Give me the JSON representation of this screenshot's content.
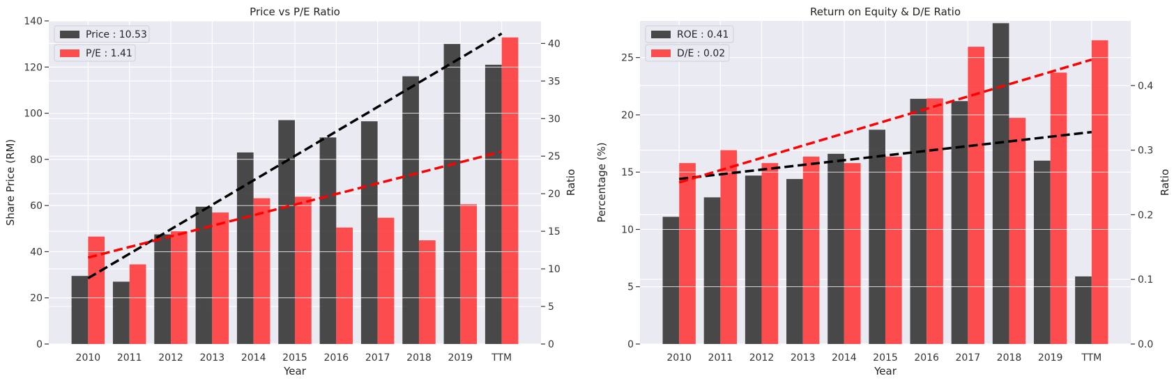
{
  "chart_data": [
    {
      "type": "bar",
      "title": "Price vs P/E Ratio",
      "xlabel": "Year",
      "ylabel": "Share Price (RM)",
      "ylabel_right": "Ratio",
      "categories": [
        "2010",
        "2011",
        "2012",
        "2013",
        "2014",
        "2015",
        "2016",
        "2017",
        "2018",
        "2019",
        "TTM"
      ],
      "ylim": [
        0,
        140
      ],
      "yticks": [
        0,
        20,
        40,
        60,
        80,
        100,
        120,
        140
      ],
      "ylim_right": [
        0,
        43
      ],
      "yticks_right": [
        0,
        5,
        10,
        15,
        20,
        25,
        30,
        35,
        40
      ],
      "legend_position": "top-left",
      "grid": true,
      "series": [
        {
          "name": "Price : 10.53",
          "axis": "left",
          "color": "#2b2b2b",
          "values": [
            29.5,
            27,
            47.5,
            59.5,
            83,
            97,
            89.5,
            96.5,
            116,
            130,
            121
          ]
        },
        {
          "name": "P/E : 1.41",
          "axis": "right",
          "color": "#ff3030",
          "values": [
            14.3,
            10.6,
            15.0,
            17.5,
            19.4,
            19.6,
            15.5,
            16.8,
            13.8,
            18.6,
            40.8
          ]
        }
      ],
      "trendlines": [
        {
          "series": "Price : 10.53",
          "axis": "left",
          "color": "#000000",
          "start": [
            0,
            28.5
          ],
          "end": [
            10,
            134.5
          ]
        },
        {
          "series": "P/E : 1.41",
          "axis": "right",
          "color": "#ff0000",
          "start": [
            0,
            11.5
          ],
          "end": [
            10,
            25.6
          ]
        }
      ]
    },
    {
      "type": "bar",
      "title": "Return on Equity & D/E Ratio",
      "xlabel": "Year",
      "ylabel": "Percentage (%)",
      "ylabel_right": "Ratio",
      "categories": [
        "2010",
        "2011",
        "2012",
        "2013",
        "2014",
        "2015",
        "2016",
        "2017",
        "2018",
        "2019",
        "TTM"
      ],
      "ylim": [
        0,
        28.2
      ],
      "yticks": [
        0,
        5,
        10,
        15,
        20,
        25
      ],
      "ylim_right": [
        0,
        0.5
      ],
      "yticks_right": [
        0.0,
        0.1,
        0.2,
        0.3,
        0.4
      ],
      "legend_position": "top-left",
      "grid": true,
      "series": [
        {
          "name": "ROE : 0.41",
          "axis": "left",
          "color": "#2b2b2b",
          "values": [
            11.1,
            12.8,
            14.7,
            14.4,
            16.6,
            18.7,
            21.4,
            21.2,
            28.0,
            16.0,
            5.9
          ]
        },
        {
          "name": "D/E : 0.02",
          "axis": "right",
          "color": "#ff3030",
          "values": [
            0.28,
            0.3,
            0.28,
            0.29,
            0.28,
            0.29,
            0.38,
            0.46,
            0.35,
            0.42,
            0.47
          ]
        }
      ],
      "trendlines": [
        {
          "series": "ROE : 0.41",
          "axis": "left",
          "color": "#000000",
          "start": [
            0,
            14.4
          ],
          "end": [
            10,
            18.5
          ]
        },
        {
          "series": "D/E : 0.02",
          "axis": "right",
          "color": "#ff0000",
          "start": [
            0,
            0.25
          ],
          "end": [
            10,
            0.44
          ]
        }
      ]
    }
  ]
}
